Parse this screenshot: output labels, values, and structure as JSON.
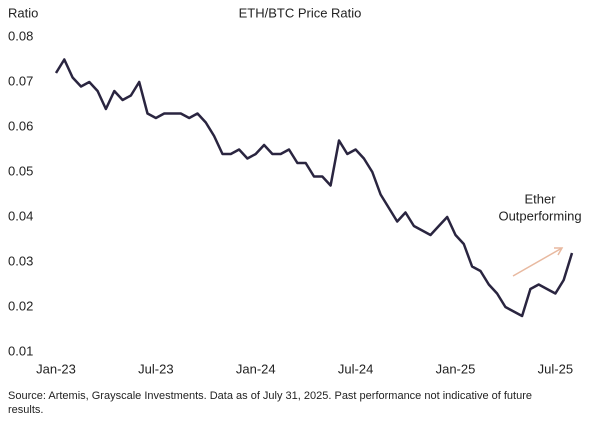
{
  "chart_data": {
    "type": "line",
    "title": "ETH/BTC Price Ratio",
    "y_label": "Ratio",
    "annotation": [
      "Ether",
      "Outperforming"
    ],
    "source": [
      "Source: Artemis, Grayscale Investments. Data as of July 31, 2025. Past performance not indicative of future",
      "results."
    ],
    "categories": [
      "Jan-23",
      null,
      null,
      null,
      null,
      null,
      null,
      null,
      null,
      null,
      null,
      null,
      "Jul-23",
      null,
      null,
      null,
      null,
      null,
      null,
      null,
      null,
      null,
      null,
      null,
      "Jan-24",
      null,
      null,
      null,
      null,
      null,
      null,
      null,
      null,
      null,
      null,
      null,
      "Jul-24",
      null,
      null,
      null,
      null,
      null,
      null,
      null,
      null,
      null,
      null,
      null,
      "Jan-25",
      null,
      null,
      null,
      null,
      null,
      null,
      null,
      null,
      null,
      null,
      null,
      "Jul-25",
      null,
      null
    ],
    "series": [
      {
        "name": "ETH/BTC",
        "color": "#2a2540",
        "values": [
          0.072,
          0.075,
          0.071,
          0.069,
          0.07,
          0.068,
          0.064,
          0.068,
          0.066,
          0.067,
          0.07,
          0.063,
          0.062,
          0.063,
          0.063,
          0.063,
          0.062,
          0.063,
          0.061,
          0.058,
          0.054,
          0.054,
          0.055,
          0.053,
          0.054,
          0.056,
          0.054,
          0.054,
          0.055,
          0.052,
          0.052,
          0.049,
          0.049,
          0.047,
          0.057,
          0.054,
          0.055,
          0.053,
          0.05,
          0.045,
          0.042,
          0.039,
          0.041,
          0.038,
          0.037,
          0.036,
          0.038,
          0.04,
          0.036,
          0.034,
          0.029,
          0.028,
          0.025,
          0.023,
          0.02,
          0.019,
          0.018,
          0.024,
          0.025,
          0.024,
          0.023,
          0.026,
          0.032
        ]
      }
    ],
    "ylim": [
      0.01,
      0.08
    ],
    "yticks": [
      0.01,
      0.02,
      0.03,
      0.04,
      0.05,
      0.06,
      0.07,
      0.08
    ],
    "grid": false
  }
}
